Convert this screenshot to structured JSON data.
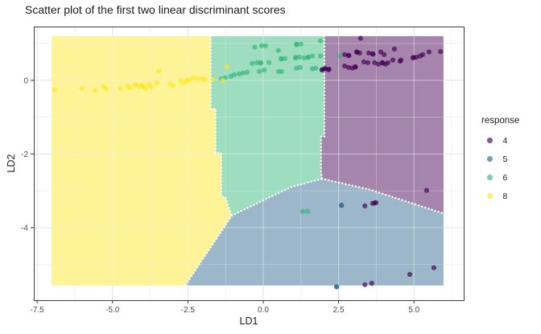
{
  "title": "Scatter plot of the first two linear discriminant scores",
  "chart_data": {
    "type": "scatter",
    "title": "Scatter plot of the first two linear discriminant scores",
    "xlabel": "LD1",
    "ylabel": "LD2",
    "xlim": [
      -7.61,
      6.65
    ],
    "ylim": [
      -5.97,
      1.46
    ],
    "grid": true,
    "x_ticks": {
      "values": [
        -7.5,
        -5.0,
        -2.5,
        0.0,
        2.5,
        5.0
      ],
      "labels": [
        "-7.5",
        "-5.0",
        "-2.5",
        "0.0",
        "2.5",
        "5.0"
      ]
    },
    "x_minor": [
      -6.25,
      -3.75,
      -1.25,
      1.25,
      3.75,
      6.25
    ],
    "y_ticks": {
      "values": [
        0,
        -2,
        -4
      ],
      "labels": [
        "0",
        "-2",
        "-4"
      ]
    },
    "y_minor": [
      1,
      -1,
      -3,
      -5
    ],
    "legend": {
      "title": "response",
      "position": "right",
      "items": [
        {
          "label": "4",
          "color": "#440154"
        },
        {
          "label": "5",
          "color": "#31688E"
        },
        {
          "label": "6",
          "color": "#35B779"
        },
        {
          "label": "8",
          "color": "#FDE725"
        }
      ]
    },
    "region_opacity": 0.48,
    "point_opacity": 0.68,
    "point_radius": 3.1,
    "region_extent": {
      "x": [
        -7.02,
        5.98
      ],
      "y": [
        -5.57,
        1.2
      ]
    },
    "decision_regions": [
      {
        "response": "8",
        "color": "#FDE725",
        "polygon": [
          [
            -7.02,
            1.2
          ],
          [
            -1.74,
            1.2
          ],
          [
            -1.74,
            -0.77
          ],
          [
            -1.58,
            -0.77
          ],
          [
            -1.58,
            -1.97
          ],
          [
            -1.39,
            -1.97
          ],
          [
            -1.39,
            -3.17
          ],
          [
            -1.26,
            -3.17
          ],
          [
            -1.12,
            -3.54
          ],
          [
            -1.04,
            -3.67
          ],
          [
            -2.59,
            -5.57
          ],
          [
            -7.02,
            -5.57
          ]
        ]
      },
      {
        "response": "6",
        "color": "#35B779",
        "polygon": [
          [
            -1.74,
            1.2
          ],
          [
            2.03,
            1.2
          ],
          [
            2.03,
            -1.53
          ],
          [
            1.92,
            -1.53
          ],
          [
            1.92,
            -2.47
          ],
          [
            1.95,
            -2.67
          ],
          [
            0.88,
            -2.91
          ],
          [
            -1.04,
            -3.67
          ],
          [
            -1.12,
            -3.54
          ],
          [
            -1.26,
            -3.17
          ],
          [
            -1.39,
            -3.17
          ],
          [
            -1.39,
            -1.97
          ],
          [
            -1.58,
            -1.97
          ],
          [
            -1.58,
            -0.77
          ],
          [
            -1.74,
            -0.77
          ]
        ]
      },
      {
        "response": "4",
        "color": "#440154",
        "polygon": [
          [
            2.03,
            1.2
          ],
          [
            5.98,
            1.2
          ],
          [
            5.98,
            -3.61
          ],
          [
            5.96,
            -3.61
          ],
          [
            3.55,
            -2.97
          ],
          [
            1.95,
            -2.67
          ],
          [
            1.92,
            -2.47
          ],
          [
            1.92,
            -1.53
          ],
          [
            2.03,
            -1.53
          ]
        ]
      },
      {
        "response": "5",
        "color": "#31688E",
        "polygon": [
          [
            1.95,
            -2.67
          ],
          [
            3.55,
            -2.97
          ],
          [
            5.96,
            -3.61
          ],
          [
            5.98,
            -3.61
          ],
          [
            5.98,
            -5.57
          ],
          [
            -2.59,
            -5.57
          ],
          [
            -1.04,
            -3.67
          ],
          [
            0.88,
            -2.91
          ]
        ]
      }
    ],
    "region_boundaries": [
      [
        [
          -1.74,
          1.2
        ],
        [
          -1.74,
          -0.77
        ],
        [
          -1.58,
          -0.77
        ],
        [
          -1.58,
          -1.97
        ],
        [
          -1.39,
          -1.97
        ],
        [
          -1.39,
          -3.17
        ],
        [
          -1.26,
          -3.17
        ],
        [
          -1.04,
          -3.67
        ]
      ],
      [
        [
          -1.04,
          -3.67
        ],
        [
          -2.59,
          -5.57
        ]
      ],
      [
        [
          -1.04,
          -3.67
        ],
        [
          0.88,
          -2.91
        ],
        [
          1.95,
          -2.67
        ]
      ],
      [
        [
          2.03,
          1.2
        ],
        [
          2.03,
          -1.53
        ],
        [
          1.92,
          -1.53
        ],
        [
          1.92,
          -2.47
        ],
        [
          1.95,
          -2.67
        ]
      ],
      [
        [
          1.95,
          -2.67
        ],
        [
          3.55,
          -2.97
        ],
        [
          5.96,
          -3.61
        ]
      ]
    ],
    "series": [
      {
        "name": "4",
        "color": "#440154",
        "points": [
          [
            3.23,
            1.14
          ],
          [
            2.7,
            0.7
          ],
          [
            2.83,
            0.68
          ],
          [
            2.84,
            0.67
          ],
          [
            3.1,
            0.77
          ],
          [
            3.11,
            0.76
          ],
          [
            3.2,
            0.74
          ],
          [
            3.5,
            0.74
          ],
          [
            3.63,
            0.72
          ],
          [
            3.64,
            0.71
          ],
          [
            3.9,
            0.77
          ],
          [
            4.01,
            0.7
          ],
          [
            4.35,
            0.85
          ],
          [
            4.57,
            0.55
          ],
          [
            4.97,
            0.61
          ],
          [
            4.98,
            0.62
          ],
          [
            5.08,
            0.63
          ],
          [
            5.21,
            0.66
          ],
          [
            5.29,
            0.7
          ],
          [
            5.5,
            0.77
          ],
          [
            5.88,
            0.78
          ],
          [
            2.7,
            0.39
          ],
          [
            2.83,
            0.35
          ],
          [
            2.96,
            0.33
          ],
          [
            3.05,
            0.37
          ],
          [
            3.06,
            0.36
          ],
          [
            3.34,
            0.5
          ],
          [
            3.47,
            0.48
          ],
          [
            3.69,
            0.48
          ],
          [
            3.82,
            0.44
          ],
          [
            3.95,
            0.48
          ],
          [
            3.96,
            0.47
          ],
          [
            4.06,
            0.44
          ],
          [
            4.14,
            0.48
          ],
          [
            4.3,
            0.55
          ],
          [
            4.54,
            0.52
          ],
          [
            1.95,
            0.28
          ],
          [
            1.96,
            0.29
          ],
          [
            2.05,
            0.32
          ],
          [
            2.06,
            0.31
          ],
          [
            2.17,
            0.29
          ],
          [
            2.18,
            0.3
          ],
          [
            5.42,
            -2.99
          ],
          [
            3.37,
            -3.41
          ],
          [
            3.63,
            -3.34
          ],
          [
            3.74,
            -3.32
          ],
          [
            3.7,
            -3.33
          ],
          [
            5.66,
            -5.09
          ],
          [
            4.86,
            -5.27
          ],
          [
            3.37,
            -5.55
          ],
          [
            3.6,
            -5.51
          ]
        ]
      },
      {
        "name": "5",
        "color": "#31688E",
        "points": [
          [
            2.59,
            -3.39
          ],
          [
            2.6,
            -3.4
          ],
          [
            2.43,
            -5.6
          ],
          [
            2.44,
            -5.61
          ]
        ]
      },
      {
        "name": "6",
        "color": "#35B779",
        "points": [
          [
            -0.28,
            0.9
          ],
          [
            -0.05,
            0.94
          ],
          [
            0.08,
            0.94
          ],
          [
            0.5,
            0.81
          ],
          [
            1.1,
            0.98
          ],
          [
            1.11,
            0.97
          ],
          [
            1.25,
            0.98
          ],
          [
            1.9,
            1.07
          ],
          [
            -0.37,
            0.46
          ],
          [
            -0.21,
            0.48
          ],
          [
            -0.08,
            0.48
          ],
          [
            -0.09,
            0.47
          ],
          [
            0.19,
            0.48
          ],
          [
            0.59,
            0.59
          ],
          [
            0.6,
            0.58
          ],
          [
            0.72,
            0.59
          ],
          [
            1.07,
            0.61
          ],
          [
            1.08,
            0.62
          ],
          [
            1.2,
            0.63
          ],
          [
            1.36,
            0.61
          ],
          [
            1.5,
            0.63
          ],
          [
            1.49,
            0.62
          ],
          [
            1.63,
            0.66
          ],
          [
            1.9,
            0.66
          ],
          [
            2.54,
            0.66
          ],
          [
            -1.39,
            0.04
          ],
          [
            -1.26,
            0.07
          ],
          [
            -1.07,
            0.11
          ],
          [
            -0.96,
            0.15
          ],
          [
            -0.8,
            0.17
          ],
          [
            -0.67,
            0.2
          ],
          [
            -0.53,
            0.22
          ],
          [
            -0.13,
            0.24
          ],
          [
            0.03,
            0.28
          ],
          [
            0.51,
            0.24
          ],
          [
            0.61,
            0.24
          ],
          [
            1.1,
            0.33
          ],
          [
            1.23,
            0.35
          ],
          [
            1.63,
            0.31
          ],
          [
            1.74,
            0.33
          ],
          [
            1.31,
            -3.56
          ],
          [
            1.47,
            -3.56
          ]
        ]
      },
      {
        "name": "8",
        "color": "#FDE725",
        "points": [
          [
            -6.92,
            -0.26
          ],
          [
            -6.01,
            -0.22
          ],
          [
            -5.58,
            -0.28
          ],
          [
            -5.29,
            -0.17
          ],
          [
            -5.21,
            -0.24
          ],
          [
            -4.73,
            -0.22
          ],
          [
            -4.51,
            -0.15
          ],
          [
            -4.43,
            -0.2
          ],
          [
            -4.25,
            -0.11
          ],
          [
            -4.24,
            -0.12
          ],
          [
            -4.14,
            -0.17
          ],
          [
            -4.06,
            -0.13
          ],
          [
            -3.98,
            -0.17
          ],
          [
            -3.97,
            -0.16
          ],
          [
            -3.9,
            -0.22
          ],
          [
            -3.79,
            -0.11
          ],
          [
            -3.71,
            -0.17
          ],
          [
            -3.53,
            -0.07
          ],
          [
            -3.47,
            0.26
          ],
          [
            -3.1,
            -0.09
          ],
          [
            -2.99,
            -0.15
          ],
          [
            -2.75,
            0.0
          ],
          [
            -2.64,
            -0.07
          ],
          [
            -2.54,
            -0.02
          ],
          [
            -2.53,
            -0.01
          ],
          [
            -2.43,
            0.02
          ],
          [
            -2.32,
            0.07
          ],
          [
            -2.19,
            0.04
          ],
          [
            -2.03,
            0.04
          ],
          [
            -1.92,
            0.02
          ],
          [
            -1.66,
            0.02
          ],
          [
            -1.34,
            0.0
          ],
          [
            -1.2,
            0.37
          ]
        ]
      }
    ],
    "theme": {
      "panel_border": "#3c3c3c",
      "grid_major": "#e2e2e2",
      "grid_minor": "#efefef",
      "grid_over_region": "#ffffff",
      "tick_color": "#333333",
      "tick_label_color": "#4d4d4d",
      "boundary_dot_color": "#ffffff"
    }
  }
}
